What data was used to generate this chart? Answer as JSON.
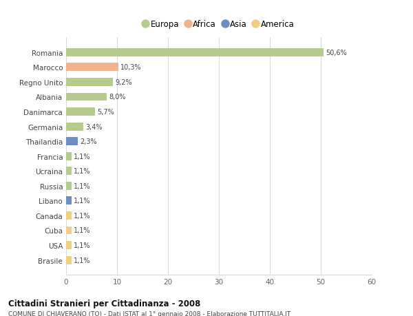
{
  "countries": [
    "Romania",
    "Marocco",
    "Regno Unito",
    "Albania",
    "Danimarca",
    "Germania",
    "Thailandia",
    "Francia",
    "Ucraina",
    "Russia",
    "Libano",
    "Canada",
    "Cuba",
    "USA",
    "Brasile"
  ],
  "values": [
    50.6,
    10.3,
    9.2,
    8.0,
    5.7,
    3.4,
    2.3,
    1.1,
    1.1,
    1.1,
    1.1,
    1.1,
    1.1,
    1.1,
    1.1
  ],
  "labels": [
    "50,6%",
    "10,3%",
    "9,2%",
    "8,0%",
    "5,7%",
    "3,4%",
    "2,3%",
    "1,1%",
    "1,1%",
    "1,1%",
    "1,1%",
    "1,1%",
    "1,1%",
    "1,1%",
    "1,1%"
  ],
  "continents": [
    "Europa",
    "Africa",
    "Europa",
    "Europa",
    "Europa",
    "Europa",
    "Asia",
    "Europa",
    "Europa",
    "Europa",
    "Asia",
    "America",
    "America",
    "America",
    "America"
  ],
  "colors": {
    "Europa": "#b5cc8e",
    "Africa": "#f0b48a",
    "Asia": "#6b8ec2",
    "America": "#f0d080"
  },
  "xlim": [
    0,
    60
  ],
  "xticks": [
    0,
    10,
    20,
    30,
    40,
    50,
    60
  ],
  "title": "Cittadini Stranieri per Cittadinanza - 2008",
  "subtitle": "COMUNE DI CHIAVERANO (TO) - Dati ISTAT al 1° gennaio 2008 - Elaborazione TUTTITALIA.IT",
  "background_color": "#ffffff",
  "grid_color": "#d8d8d8",
  "bar_height": 0.55,
  "legend_order": [
    "Europa",
    "Africa",
    "Asia",
    "America"
  ]
}
